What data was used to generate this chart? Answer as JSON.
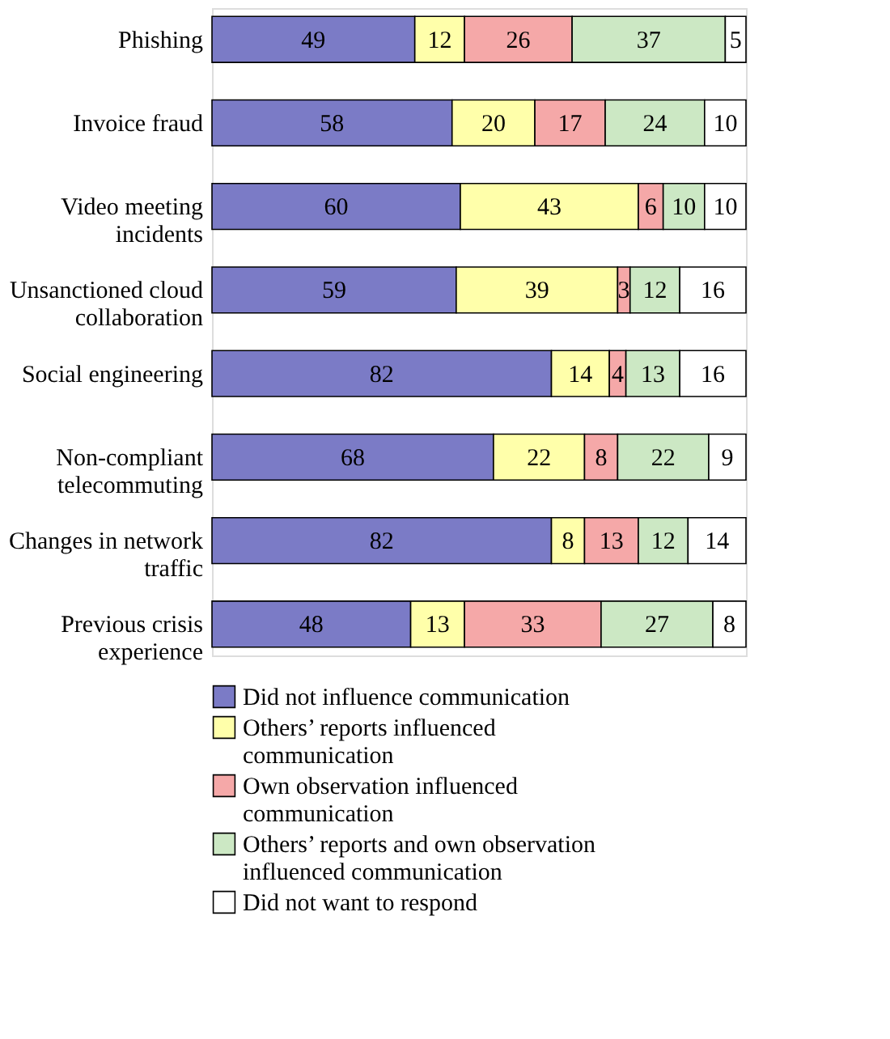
{
  "chart_data": {
    "type": "bar",
    "orientation": "horizontal",
    "stacked": true,
    "data_labels": true,
    "legend": "bottom",
    "categories": [
      "Phishing",
      "Invoice fraud",
      "Video meeting incidents",
      "Unsanctioned cloud collaboration",
      "Social engineering",
      "Non-compliant telecommuting",
      "Changes in network traffic",
      "Previous crisis experience"
    ],
    "series": [
      {
        "name": "Did not influence communication",
        "color": "#7b7bc6",
        "values": [
          49,
          58,
          60,
          59,
          82,
          68,
          82,
          48
        ]
      },
      {
        "name": "Others’ reports influenced communication",
        "color": "#ffffaa",
        "values": [
          12,
          20,
          43,
          39,
          14,
          22,
          8,
          13
        ]
      },
      {
        "name": "Own observation influenced communication",
        "color": "#f5a8a8",
        "values": [
          26,
          17,
          6,
          3,
          4,
          8,
          13,
          33
        ]
      },
      {
        "name": "Others’ reports and own observation influenced communication",
        "color": "#cce8c4",
        "values": [
          37,
          24,
          10,
          12,
          13,
          22,
          12,
          27
        ]
      },
      {
        "name": "Did not want to respond",
        "color": "#ffffff",
        "values": [
          5,
          10,
          10,
          16,
          16,
          9,
          14,
          8
        ]
      }
    ]
  }
}
